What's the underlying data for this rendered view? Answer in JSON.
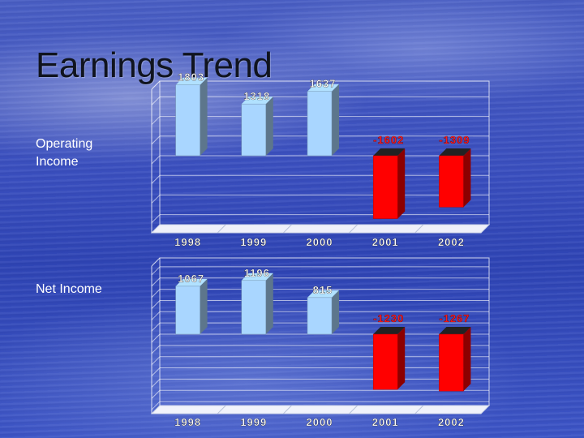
{
  "title": "Earnings Trend",
  "chart_data": [
    {
      "type": "bar",
      "row_label": "Operating\nIncome",
      "categories": [
        "1998",
        "1999",
        "2000",
        "2001",
        "2002"
      ],
      "values": [
        1803,
        1318,
        1637,
        -1602,
        -1309
      ],
      "value_labels": [
        "1803",
        "1318",
        "1637",
        "-1602",
        "-1309"
      ],
      "title": "",
      "xlabel": "",
      "ylabel": "",
      "colors": {
        "positive": "#a9d6ff",
        "negative": "#ff0000"
      }
    },
    {
      "type": "bar",
      "row_label": "Net Income",
      "categories": [
        "1998",
        "1999",
        "2000",
        "2001",
        "2002"
      ],
      "values": [
        1067,
        1196,
        815,
        -1230,
        -1267
      ],
      "value_labels": [
        "1067",
        "1196",
        "815",
        "-1230",
        "-1267"
      ],
      "title": "",
      "xlabel": "",
      "ylabel": "",
      "colors": {
        "positive": "#a9d6ff",
        "negative": "#ff0000"
      }
    }
  ]
}
